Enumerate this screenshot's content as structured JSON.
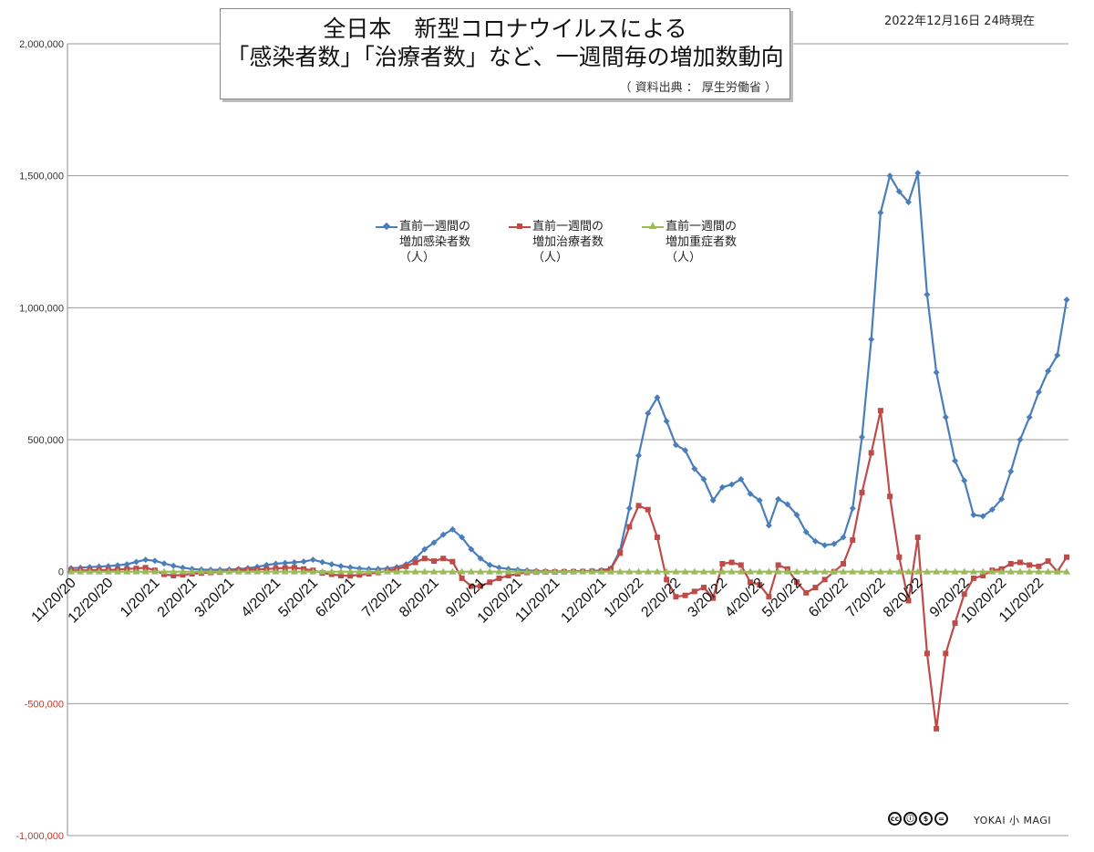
{
  "chart_data": {
    "type": "line",
    "title": "全日本　新型コロナウイルスによる",
    "subtitle": "「感染者数」「治療者数」など、一週間毎の増加数動向",
    "source": "（ 資料出典 ： 厚生労働省 ）",
    "date_stamp": "2022年12月16日 24時現在",
    "ylim": [
      -1000000,
      2000000
    ],
    "y_ticks": [
      -1000000,
      -500000,
      0,
      500000,
      1000000,
      1500000,
      2000000
    ],
    "y_tick_labels": [
      "-1,000,000",
      "-500,000",
      "0",
      "500,000",
      "1,000,000",
      "1,500,000",
      "2,000,000"
    ],
    "x_tick_labels": [
      "11/20/20",
      "12/20/20",
      "1/20/21",
      "2/20/21",
      "3/20/21",
      "4/20/21",
      "5/20/21",
      "6/20/21",
      "7/20/21",
      "8/20/21",
      "9/20/21",
      "10/20/21",
      "11/20/21",
      "12/20/21",
      "1/20/22",
      "2/20/22",
      "3/20/22",
      "4/20/22",
      "5/20/22",
      "6/20/22",
      "7/20/22",
      "8/20/22",
      "9/20/22",
      "10/20/22",
      "11/20/22"
    ],
    "x_tick_index": [
      0,
      4,
      9,
      13,
      17,
      22,
      26,
      30,
      35,
      39,
      44,
      48,
      52,
      57,
      61,
      65,
      70,
      74,
      78,
      83,
      87,
      91,
      96,
      100,
      104
    ],
    "grid": false,
    "legend_position": "top-center",
    "series": [
      {
        "name": "直前一週間の\n増加感染者数\n（人）",
        "color": "#4a7ebb",
        "marker": "diamond",
        "values": [
          13000,
          15000,
          17000,
          19000,
          21000,
          24000,
          28000,
          37000,
          45000,
          41000,
          31000,
          22000,
          15000,
          10000,
          8000,
          7000,
          7000,
          8000,
          10000,
          13000,
          18000,
          25000,
          30000,
          33000,
          35000,
          38000,
          45000,
          36000,
          28000,
          21000,
          16000,
          12000,
          10000,
          10000,
          12000,
          17000,
          28000,
          50000,
          85000,
          110000,
          140000,
          160000,
          130000,
          85000,
          50000,
          25000,
          15000,
          10000,
          7000,
          5000,
          3000,
          2000,
          1500,
          1300,
          1500,
          2000,
          3000,
          5000,
          12000,
          80000,
          240000,
          440000,
          600000,
          660000,
          570000,
          480000,
          460000,
          390000,
          350000,
          270000,
          320000,
          330000,
          350000,
          295000,
          270000,
          175000,
          275000,
          255000,
          215000,
          150000,
          115000,
          100000,
          105000,
          130000,
          240000,
          510000,
          880000,
          1360000,
          1500000,
          1440000,
          1400000,
          1510000,
          1050000,
          755000,
          585000,
          420000,
          345000,
          215000,
          210000,
          235000,
          275000,
          380000,
          500000,
          585000,
          680000,
          760000,
          820000,
          1030000
        ]
      },
      {
        "name": "直前一週間の\n増加治療者数\n（人）",
        "color": "#be4b48",
        "marker": "square",
        "values": [
          5000,
          5000,
          5000,
          6000,
          6000,
          8000,
          10000,
          12000,
          15000,
          5000,
          -10000,
          -15000,
          -12000,
          -8000,
          -5000,
          -3000,
          -2000,
          2000,
          5000,
          7000,
          9000,
          10000,
          12000,
          14000,
          15000,
          10000,
          5000,
          -5000,
          -10000,
          -15000,
          -16000,
          -12000,
          -8000,
          -3000,
          3000,
          10000,
          20000,
          35000,
          50000,
          40000,
          50000,
          38000,
          -25000,
          -55000,
          -55000,
          -40000,
          -25000,
          -15000,
          -8000,
          -3000,
          -1500,
          -1000,
          -1000,
          -500,
          0,
          500,
          1500,
          3000,
          10000,
          70000,
          170000,
          250000,
          235000,
          130000,
          -30000,
          -95000,
          -90000,
          -75000,
          -60000,
          -100000,
          30000,
          35000,
          25000,
          -40000,
          -50000,
          -95000,
          25000,
          10000,
          -40000,
          -80000,
          -60000,
          -30000,
          0,
          30000,
          120000,
          300000,
          450000,
          610000,
          285000,
          55000,
          -110000,
          130000,
          -310000,
          -595000,
          -310000,
          -195000,
          -85000,
          -25000,
          -15000,
          5000,
          10000,
          30000,
          35000,
          25000,
          20000,
          40000,
          0,
          55000
        ]
      },
      {
        "name": "直前一週間の\n増加重症者数\n（人）",
        "color": "#9bbb59",
        "marker": "triangle",
        "values": [
          0,
          0,
          0,
          0,
          0,
          0,
          0,
          0,
          0,
          0,
          0,
          0,
          0,
          0,
          0,
          0,
          0,
          0,
          0,
          0,
          0,
          0,
          0,
          0,
          0,
          0,
          0,
          0,
          0,
          0,
          0,
          0,
          0,
          0,
          0,
          0,
          0,
          0,
          0,
          0,
          0,
          0,
          0,
          0,
          0,
          0,
          0,
          0,
          0,
          0,
          0,
          0,
          0,
          0,
          0,
          0,
          0,
          0,
          0,
          0,
          0,
          0,
          0,
          0,
          0,
          0,
          0,
          0,
          0,
          0,
          0,
          0,
          0,
          0,
          0,
          0,
          0,
          0,
          0,
          0,
          0,
          0,
          0,
          0,
          0,
          0,
          0,
          0,
          0,
          0,
          0,
          0,
          0,
          0,
          0,
          0,
          0,
          0,
          0,
          0,
          0,
          0,
          0,
          0,
          0,
          0,
          0,
          0
        ]
      }
    ]
  },
  "footer": {
    "cc_icons": [
      "cc",
      "by",
      "nc",
      "nd"
    ],
    "cc_icon_labels": [
      "cc",
      "ⓘ",
      "$",
      "="
    ],
    "brand": "YOKAI 小 MAGI"
  }
}
